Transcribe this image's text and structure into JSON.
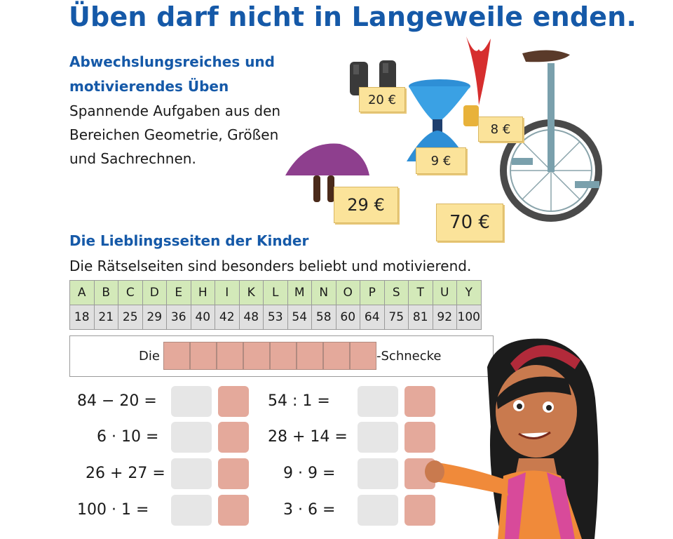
{
  "title": "Üben darf nicht in Langeweile enden.",
  "section1": {
    "heading_line1": "Abwechslungsreiches und",
    "heading_line2": "motivierendes Üben",
    "text_line1": "Spannende Aufgaben aus den",
    "text_line2": "Bereichen Geometrie, Größen",
    "text_line3": "und Sachrechnen."
  },
  "price_tags": [
    "20 €",
    "8 €",
    "9 €",
    "29 €",
    "70 €"
  ],
  "section2": {
    "heading": "Die Lieblingsseiten der Kinder",
    "text": "Die Rätselseiten sind besonders beliebt und motivierend."
  },
  "cipher": {
    "letters": [
      "A",
      "B",
      "C",
      "D",
      "E",
      "H",
      "I",
      "K",
      "L",
      "M",
      "N",
      "O",
      "P",
      "S",
      "T",
      "U",
      "Y"
    ],
    "numbers": [
      "18",
      "21",
      "25",
      "29",
      "36",
      "40",
      "42",
      "48",
      "53",
      "54",
      "58",
      "60",
      "64",
      "75",
      "81",
      "92",
      "100"
    ]
  },
  "answer": {
    "prefix": "Die",
    "suffix": "-Schnecke",
    "cells": 8
  },
  "equations_left": [
    "84 − 20 =",
    "6 · 10 =",
    "26 + 27 =",
    "100 · 1 ="
  ],
  "equations_right": [
    "54 : 1 =",
    "28 + 14 =",
    "9 · 9 =",
    "3 · 6 ="
  ],
  "colors": {
    "blue": "#1559a8",
    "green": "#d3e9b9",
    "gray": "#e0e0e0",
    "pink": "#e4a99b",
    "tag": "#fbe39a"
  }
}
